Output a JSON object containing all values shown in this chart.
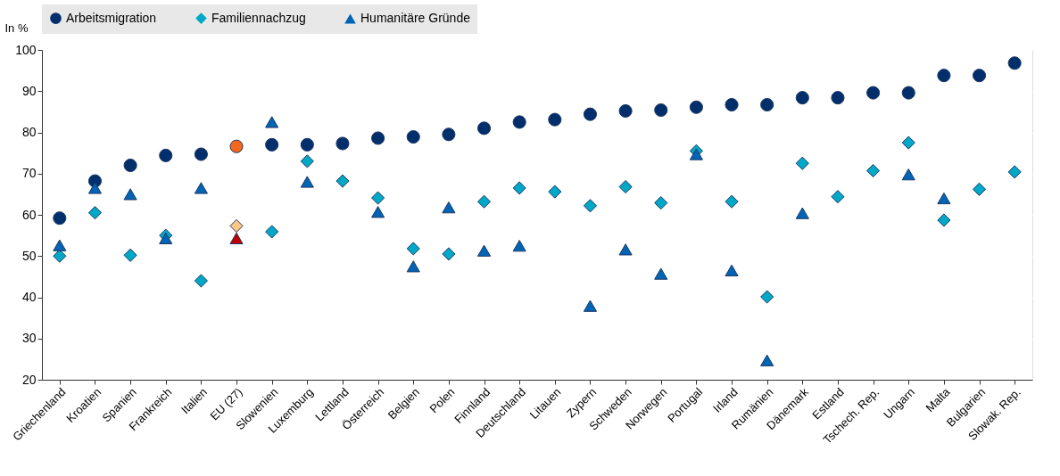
{
  "chart_data": {
    "type": "scatter",
    "categories": [
      "Griechenland",
      "Kroatien",
      "Spanien",
      "Frankreich",
      "Italien",
      "EU (27)",
      "Slowenien",
      "Luxemburg",
      "Lettland",
      "Österreich",
      "Belgien",
      "Polen",
      "Finnland",
      "Deutschland",
      "Litauen",
      "Zypern",
      "Schweden",
      "Norwegen",
      "Portugal",
      "Irland",
      "Rumänien",
      "Dänemark",
      "Estland",
      "Tschech. Rep.",
      "Ungarn",
      "Malta",
      "Bulgarien",
      "Slowak. Rep."
    ],
    "ylabel": "In %",
    "ylim": [
      20,
      100
    ],
    "yticks": [
      20,
      30,
      40,
      50,
      60,
      70,
      80,
      90,
      100
    ],
    "grid": true,
    "legend": "top",
    "series": [
      {
        "name": "Arbeitsmigration",
        "color": "#002f6c",
        "marker": "circle",
        "colors": [
          null,
          null,
          null,
          null,
          null,
          "#f4661b",
          null,
          null,
          null,
          null,
          null,
          null,
          null,
          null,
          null,
          null,
          null,
          null,
          null,
          null,
          null,
          null,
          null,
          null,
          null,
          null,
          null,
          null
        ],
        "values": [
          59.2,
          68.2,
          72,
          74.4,
          74.7,
          76.6,
          77,
          77,
          77.3,
          78.6,
          78.9,
          79.5,
          81,
          82.5,
          83.1,
          84.4,
          85.2,
          85.4,
          86.1,
          86.7,
          86.7,
          88.4,
          88.4,
          89.6,
          89.6,
          93.8,
          93.8,
          96.8
        ]
      },
      {
        "name": "Familiennachzug",
        "color": "#00a8c8",
        "marker": "diamond",
        "colors": [
          null,
          null,
          null,
          null,
          null,
          "#fdc886",
          null,
          null,
          null,
          null,
          null,
          null,
          null,
          null,
          null,
          null,
          null,
          null,
          null,
          null,
          null,
          null,
          null,
          null,
          null,
          null,
          null,
          null
        ],
        "values": [
          50,
          60.5,
          50.2,
          55,
          44,
          57.3,
          55.9,
          73,
          68.2,
          64.1,
          51.8,
          50.5,
          63.2,
          66.5,
          65.6,
          62.2,
          66.8,
          62.9,
          75.5,
          63.2,
          40.1,
          72.5,
          64.4,
          70.7,
          77.5,
          58.7,
          66.2,
          70.4
        ]
      },
      {
        "name": "Humanitäre Gründe",
        "color": "#0064b4",
        "marker": "triangle",
        "colors": [
          null,
          null,
          null,
          null,
          null,
          "#c00000",
          null,
          null,
          null,
          null,
          null,
          null,
          null,
          null,
          null,
          null,
          null,
          null,
          null,
          null,
          null,
          null,
          null,
          null,
          null,
          null,
          null,
          null
        ],
        "values": [
          52.6,
          66.5,
          65,
          54.3,
          66.5,
          54.3,
          82.5,
          68,
          null,
          60.7,
          47.5,
          61.8,
          51.3,
          52.5,
          null,
          37.9,
          51.6,
          45.7,
          74.7,
          46.5,
          24.7,
          60.4,
          null,
          null,
          69.8,
          64,
          null,
          null
        ]
      }
    ]
  }
}
